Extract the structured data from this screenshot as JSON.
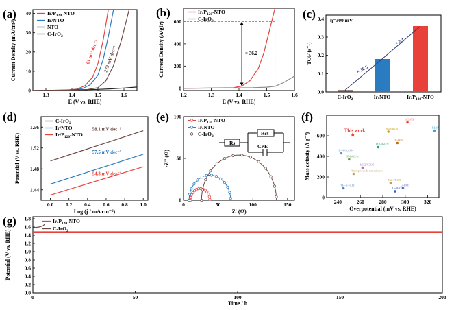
{
  "colors": {
    "red": "#e8413a",
    "blue": "#2a7bc0",
    "black": "#222222",
    "gray": "#8a8a8a",
    "brown": "#6b4a44",
    "navy": "#2a3a7a"
  },
  "panel_labels": [
    "(a)",
    "(b)",
    "(c)",
    "(d)",
    "(e)",
    "(f)",
    "(g)"
  ],
  "chart_data": [
    {
      "id": "a",
      "type": "line",
      "xlabel": "E (V vs. RHE)",
      "ylabel": "Current Density (mA/cm²)",
      "xlim": [
        1.25,
        1.65
      ],
      "ylim": [
        0,
        42
      ],
      "xticks": [
        "1.3",
        "1.4",
        "1.5",
        "1.6"
      ],
      "yticks": [
        "0",
        "10",
        "20",
        "30",
        "40"
      ],
      "legend": [
        "Ir/P120-NTO",
        "Ir/NTO",
        "NTO",
        "C-IrO2"
      ],
      "annotations": [
        "61 mV dec⁻¹",
        "279 mV dec⁻¹"
      ],
      "series": [
        {
          "name": "Ir/P120-NTO",
          "color": "red",
          "x": [
            1.25,
            1.38,
            1.42,
            1.45,
            1.48,
            1.5,
            1.52,
            1.54
          ],
          "y": [
            0,
            0.2,
            0.8,
            2.5,
            7,
            14,
            26,
            42
          ]
        },
        {
          "name": "Ir/NTO",
          "color": "blue",
          "x": [
            1.25,
            1.4,
            1.44,
            1.47,
            1.5,
            1.52,
            1.54,
            1.56
          ],
          "y": [
            0,
            0.2,
            1,
            3,
            8,
            16,
            28,
            42
          ]
        },
        {
          "name": "NTO",
          "color": "black",
          "x": [
            1.25,
            1.4,
            1.5,
            1.55,
            1.6,
            1.65
          ],
          "y": [
            0,
            0.3,
            0.6,
            0.9,
            1.3,
            1.8
          ]
        },
        {
          "name": "C-IrO2",
          "color": "brown",
          "x": [
            1.25,
            1.45,
            1.5,
            1.53,
            1.56,
            1.59,
            1.62
          ],
          "y": [
            0,
            0.3,
            1.5,
            5,
            13,
            26,
            42
          ]
        }
      ]
    },
    {
      "id": "b",
      "type": "line",
      "xlabel": "E (V vs. RHE)",
      "ylabel": "Current Density (A/gIr)",
      "xlim": [
        1.2,
        1.6
      ],
      "ylim": [
        -20,
        720
      ],
      "xticks": [
        "1.2",
        "1.3",
        "1.4",
        "1.5",
        "1.6"
      ],
      "yticks": [
        "0",
        "200",
        "400",
        "600"
      ],
      "legend": [
        "Ir/P120-NTO",
        "C-IrO2"
      ],
      "annotations": [
        "× 36.2"
      ],
      "series": [
        {
          "name": "Ir/P120-NTO",
          "color": "red",
          "x": [
            1.2,
            1.38,
            1.41,
            1.44,
            1.47,
            1.49,
            1.51,
            1.53
          ],
          "y": [
            0,
            5,
            20,
            70,
            180,
            320,
            520,
            720
          ]
        },
        {
          "name": "C-IrO2",
          "color": "gray",
          "x": [
            1.2,
            1.45,
            1.5,
            1.53,
            1.56,
            1.6
          ],
          "y": [
            0,
            5,
            10,
            18,
            50,
            110
          ]
        }
      ]
    },
    {
      "id": "c",
      "type": "bar",
      "title": "η=300 mV",
      "ylabel": "TOF (s⁻¹)",
      "categories": [
        "C-IrO2",
        "Ir/NTO",
        "Ir/P120-NTO"
      ],
      "values": [
        0.01,
        0.18,
        0.36
      ],
      "ylim": [
        0,
        0.42
      ],
      "yticks": [
        "0.0",
        "0.1",
        "0.2",
        "0.3",
        "0.4"
      ],
      "colors": [
        "brown",
        "blue",
        "red"
      ],
      "annotations": [
        "× 36.5",
        "× 2.1"
      ]
    },
    {
      "id": "d",
      "type": "line",
      "xlabel": "Log (j / mA cm⁻²)",
      "ylabel": "Potential (V vs. RHE)",
      "xlim": [
        -0.1,
        1.05
      ],
      "ylim": [
        1.42,
        1.58
      ],
      "xticks": [
        "0.0",
        "0.2",
        "0.4",
        "0.6",
        "0.8",
        "1.0"
      ],
      "yticks": [
        "1.44",
        "1.48",
        "1.52",
        "1.56"
      ],
      "legend": [
        "C-IrO2",
        "Ir/NTO",
        "Ir/P120-NTO"
      ],
      "annotations": [
        "58.1 mV dec⁻¹",
        "57.5 mV dec⁻¹",
        "54.3 mV dec⁻¹"
      ],
      "series": [
        {
          "name": "C-IrO2",
          "color": "brown",
          "x": [
            0,
            1
          ],
          "y": [
            1.495,
            1.553
          ]
        },
        {
          "name": "Ir/NTO",
          "color": "blue",
          "x": [
            0,
            1
          ],
          "y": [
            1.451,
            1.508
          ]
        },
        {
          "name": "Ir/P120-NTO",
          "color": "red",
          "x": [
            0,
            1
          ],
          "y": [
            1.43,
            1.484
          ]
        }
      ]
    },
    {
      "id": "e",
      "type": "scatter",
      "xlabel": "Z' (Ω)",
      "ylabel": "-Z'' (Ω)",
      "xlim": [
        0,
        160
      ],
      "ylim": [
        0,
        100
      ],
      "xticks": [
        "0",
        "50",
        "100",
        "150"
      ],
      "yticks": [
        "0",
        "50",
        "100"
      ],
      "legend": [
        "Ir/P120-NTO",
        "Ir/NTO",
        "C-IrO2"
      ],
      "circuit": [
        "Rs",
        "Rct",
        "CPE"
      ],
      "series": [
        {
          "name": "Ir/P120-NTO",
          "color": "red",
          "center": 24,
          "radius": 14
        },
        {
          "name": "Ir/NTO",
          "color": "blue",
          "center": 38,
          "radius": 30
        },
        {
          "name": "C-IrO2",
          "color": "brown",
          "center": 80,
          "radius": 54
        }
      ]
    },
    {
      "id": "f",
      "type": "scatter",
      "xlabel": "Overpotential (mV vs. RHE)",
      "ylabel": "Mass activity (A g⁻¹)",
      "xlim": [
        230,
        330
      ],
      "ylim": [
        0,
        800
      ],
      "xticks": [
        "240",
        "260",
        "280",
        "300",
        "320"
      ],
      "yticks": [
        "0",
        "200",
        "400",
        "600"
      ],
      "points": [
        {
          "label": "This work",
          "x": 253,
          "y": 610,
          "color": "#e8413a",
          "star": true
        },
        {
          "label": "IrCoNi",
          "x": 302,
          "y": 730,
          "color": "#e8413a"
        },
        {
          "label": "Ru@IrOx",
          "x": 285,
          "y": 640,
          "color": "#c8a020"
        },
        {
          "label": "IrO2/GCN",
          "x": 276,
          "y": 490,
          "color": "#2a9a6a"
        },
        {
          "label": "Ir-W-B",
          "x": 293,
          "y": 530,
          "color": "#c07010"
        },
        {
          "label": "Pd@Ir",
          "x": 326,
          "y": 650,
          "color": "#3aa0d0"
        },
        {
          "label": "Ir-NiCo2O4",
          "x": 243,
          "y": 430,
          "color": "#7090c0"
        },
        {
          "label": "Ti-IrO2/Ir",
          "x": 250,
          "y": 370,
          "color": "#5aa040"
        },
        {
          "label": "IrO2/V2O5",
          "x": 262,
          "y": 290,
          "color": "#a070c0"
        },
        {
          "label": "Amorphous Ir nanosheets",
          "x": 254,
          "y": 230,
          "color": "#c0a060"
        },
        {
          "label": "6H-Ir-IrO2",
          "x": 245,
          "y": 90,
          "color": "#5080c0"
        },
        {
          "label": "Ni0.7Ir0.3",
          "x": 287,
          "y": 140,
          "color": "#c0a040"
        },
        {
          "label": "Li-IrOx",
          "x": 298,
          "y": 90,
          "color": "#6070c0"
        },
        {
          "label": "La2IrO7",
          "x": 291,
          "y": 60,
          "color": "#3060c0"
        }
      ]
    },
    {
      "id": "g",
      "type": "line",
      "xlabel": "Time / h",
      "ylabel": "Potential (V vs. RHE)",
      "xlim": [
        0,
        200
      ],
      "ylim": [
        0,
        1.85
      ],
      "xticks": [
        "0",
        "50",
        "100",
        "150",
        "200"
      ],
      "yticks": [
        "0.0",
        "0.2",
        "0.4",
        "0.6",
        "0.8",
        "1.0",
        "1.2",
        "1.4",
        "1.6",
        "1.8"
      ],
      "legend": [
        "Ir/P120-NTO",
        "C-IrO2"
      ],
      "series": [
        {
          "name": "Ir/P120-NTO",
          "color": "red",
          "x": [
            0,
            200
          ],
          "y": [
            1.48,
            1.48
          ]
        },
        {
          "name": "C-IrO2",
          "color": "brown",
          "x": [
            0,
            3,
            5,
            6
          ],
          "y": [
            1.58,
            1.6,
            1.63,
            1.68
          ]
        }
      ]
    }
  ]
}
